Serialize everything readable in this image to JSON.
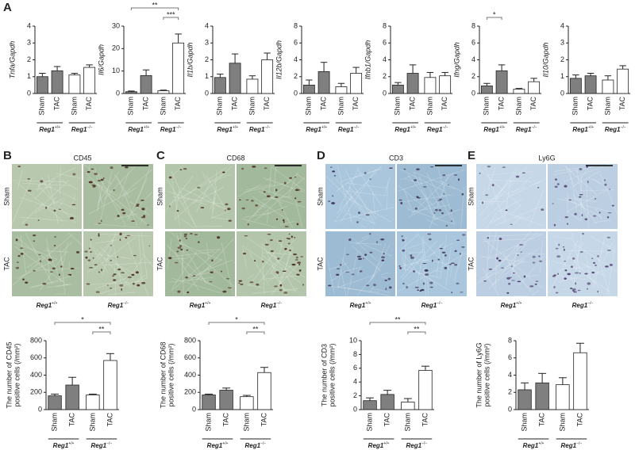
{
  "chart_data": [
    {
      "type": "bar",
      "ylabel": "Tnfa/Gapdh",
      "categories": [
        "Sham",
        "TAC",
        "Sham",
        "TAC"
      ],
      "groups": [
        {
          "name": "Reg1",
          "genotype": "+/+"
        },
        {
          "name": "Reg1",
          "genotype": "−/−"
        }
      ],
      "values": [
        1.0,
        1.35,
        1.1,
        1.55
      ],
      "errors": [
        0.2,
        0.25,
        0.1,
        0.15
      ],
      "colors": [
        "#7f7f7f",
        "#7f7f7f",
        "#ffffff",
        "#ffffff"
      ],
      "ylim": [
        0,
        4
      ],
      "yticks": [
        0,
        1,
        2,
        3,
        4
      ],
      "brackets": []
    },
    {
      "type": "bar",
      "ylabel": "Il6/Gapdh",
      "categories": [
        "Sham",
        "TAC",
        "Sham",
        "TAC"
      ],
      "groups": [
        {
          "name": "Reg1",
          "genotype": "+/+"
        },
        {
          "name": "Reg1",
          "genotype": "−/−"
        }
      ],
      "values": [
        0.8,
        8,
        1.2,
        22.5
      ],
      "errors": [
        0.3,
        2.5,
        0.3,
        4
      ],
      "colors": [
        "#7f7f7f",
        "#7f7f7f",
        "#ffffff",
        "#ffffff"
      ],
      "ylim": [
        0,
        30
      ],
      "yticks": [
        0,
        10,
        20,
        30
      ],
      "brackets": [
        {
          "from": 0,
          "to": 3,
          "label": "**"
        },
        {
          "from": 2,
          "to": 3,
          "label": "***"
        }
      ]
    },
    {
      "type": "bar",
      "ylabel": "Il1b/Gapdh",
      "categories": [
        "Sham",
        "TAC",
        "Sham",
        "TAC"
      ],
      "groups": [
        {
          "name": "Reg1",
          "genotype": "+/+"
        },
        {
          "name": "Reg1",
          "genotype": "−/−"
        }
      ],
      "values": [
        0.95,
        1.8,
        0.85,
        2.0
      ],
      "errors": [
        0.2,
        0.55,
        0.2,
        0.4
      ],
      "colors": [
        "#7f7f7f",
        "#7f7f7f",
        "#ffffff",
        "#ffffff"
      ],
      "ylim": [
        0,
        4
      ],
      "yticks": [
        0,
        1,
        2,
        3,
        4
      ],
      "brackets": []
    },
    {
      "type": "bar",
      "ylabel": "Il12b/Gapdh",
      "categories": [
        "Sham",
        "TAC",
        "Sham",
        "TAC"
      ],
      "groups": [
        {
          "name": "Reg1",
          "genotype": "+/+"
        },
        {
          "name": "Reg1",
          "genotype": "−/−"
        }
      ],
      "values": [
        1.0,
        2.6,
        0.8,
        2.4
      ],
      "errors": [
        0.6,
        1.1,
        0.4,
        0.7
      ],
      "colors": [
        "#7f7f7f",
        "#7f7f7f",
        "#ffffff",
        "#ffffff"
      ],
      "ylim": [
        0,
        8
      ],
      "yticks": [
        0,
        2,
        4,
        6,
        8
      ],
      "brackets": []
    },
    {
      "type": "bar",
      "ylabel": "Ifnb1/Gapdh",
      "categories": [
        "Sham",
        "TAC",
        "Sham",
        "TAC"
      ],
      "groups": [
        {
          "name": "Reg1",
          "genotype": "+/+"
        },
        {
          "name": "Reg1",
          "genotype": "−/−"
        }
      ],
      "values": [
        1.0,
        2.4,
        1.9,
        2.1
      ],
      "errors": [
        0.3,
        1.0,
        0.6,
        0.4
      ],
      "colors": [
        "#7f7f7f",
        "#7f7f7f",
        "#ffffff",
        "#ffffff"
      ],
      "ylim": [
        0,
        8
      ],
      "yticks": [
        0,
        2,
        4,
        6,
        8
      ],
      "brackets": []
    },
    {
      "type": "bar",
      "ylabel": "Ifng/Gapdh",
      "categories": [
        "Sham",
        "TAC",
        "Sham",
        "TAC"
      ],
      "groups": [
        {
          "name": "Reg1",
          "genotype": "+/+"
        },
        {
          "name": "Reg1",
          "genotype": "−/−"
        }
      ],
      "values": [
        0.9,
        2.7,
        0.5,
        1.4
      ],
      "errors": [
        0.3,
        0.7,
        0.1,
        0.4
      ],
      "colors": [
        "#7f7f7f",
        "#7f7f7f",
        "#ffffff",
        "#ffffff"
      ],
      "ylim": [
        0,
        8
      ],
      "yticks": [
        0,
        2,
        4,
        6,
        8
      ],
      "brackets": [
        {
          "from": 0,
          "to": 1,
          "label": "*"
        }
      ]
    },
    {
      "type": "bar",
      "ylabel": "Il10/Gapdh",
      "categories": [
        "Sham",
        "TAC",
        "Sham",
        "TAC"
      ],
      "groups": [
        {
          "name": "Reg1",
          "genotype": "+/+"
        },
        {
          "name": "Reg1",
          "genotype": "−/−"
        }
      ],
      "values": [
        0.9,
        1.05,
        0.8,
        1.45
      ],
      "errors": [
        0.2,
        0.15,
        0.25,
        0.2
      ],
      "colors": [
        "#7f7f7f",
        "#7f7f7f",
        "#ffffff",
        "#ffffff"
      ],
      "ylim": [
        0,
        4
      ],
      "yticks": [
        0,
        1,
        2,
        3,
        4
      ],
      "brackets": []
    },
    {
      "type": "bar",
      "ylabel": [
        "The number of CD45",
        "positive cells (/mm²)"
      ],
      "categories": [
        "Sham",
        "TAC",
        "Sham",
        "TAC"
      ],
      "groups": [
        {
          "name": "Reg1",
          "genotype": "+/+"
        },
        {
          "name": "Reg1",
          "genotype": "−/−"
        }
      ],
      "values": [
        160,
        285,
        170,
        570
      ],
      "errors": [
        20,
        90,
        10,
        80
      ],
      "colors": [
        "#7f7f7f",
        "#7f7f7f",
        "#ffffff",
        "#ffffff"
      ],
      "ylim": [
        0,
        800
      ],
      "yticks": [
        0,
        200,
        400,
        600,
        800
      ],
      "brackets": [
        {
          "from": 0,
          "to": 3,
          "label": "*"
        },
        {
          "from": 2,
          "to": 3,
          "label": "**"
        }
      ]
    },
    {
      "type": "bar",
      "ylabel": [
        "The number of CD68",
        "positive cells (/mm²)"
      ],
      "categories": [
        "Sham",
        "TAC",
        "Sham",
        "TAC"
      ],
      "groups": [
        {
          "name": "Reg1",
          "genotype": "+/+"
        },
        {
          "name": "Reg1",
          "genotype": "−/−"
        }
      ],
      "values": [
        170,
        225,
        150,
        430
      ],
      "errors": [
        10,
        25,
        15,
        60
      ],
      "colors": [
        "#7f7f7f",
        "#7f7f7f",
        "#ffffff",
        "#ffffff"
      ],
      "ylim": [
        0,
        800
      ],
      "yticks": [
        0,
        200,
        400,
        600,
        800
      ],
      "brackets": [
        {
          "from": 0,
          "to": 3,
          "label": "*"
        },
        {
          "from": 2,
          "to": 3,
          "label": "**"
        }
      ]
    },
    {
      "type": "bar",
      "ylabel": [
        "The number of CD3",
        "positive cells (/mm²)"
      ],
      "categories": [
        "Sham",
        "TAC",
        "Sham",
        "TAC"
      ],
      "groups": [
        {
          "name": "Reg1",
          "genotype": "+/+"
        },
        {
          "name": "Reg1",
          "genotype": "−/−"
        }
      ],
      "values": [
        1.3,
        2.2,
        1.1,
        5.7
      ],
      "errors": [
        0.4,
        0.6,
        0.5,
        0.6
      ],
      "colors": [
        "#7f7f7f",
        "#7f7f7f",
        "#ffffff",
        "#ffffff"
      ],
      "ylim": [
        0,
        10
      ],
      "yticks": [
        0,
        2,
        4,
        6,
        8,
        10
      ],
      "brackets": [
        {
          "from": 0,
          "to": 3,
          "label": "**"
        },
        {
          "from": 2,
          "to": 3,
          "label": "**"
        }
      ]
    },
    {
      "type": "bar",
      "ylabel": [
        "The number of Ly6G",
        "positive cells (/mm²)"
      ],
      "categories": [
        "Sham",
        "TAC",
        "Sham",
        "TAC"
      ],
      "groups": [
        {
          "name": "Reg1",
          "genotype": "+/+"
        },
        {
          "name": "Reg1",
          "genotype": "−/−"
        }
      ],
      "values": [
        2.3,
        3.1,
        2.9,
        6.6
      ],
      "errors": [
        0.8,
        1.1,
        0.8,
        1.1
      ],
      "colors": [
        "#7f7f7f",
        "#7f7f7f",
        "#ffffff",
        "#ffffff"
      ],
      "ylim": [
        0,
        8
      ],
      "yticks": [
        0,
        2,
        4,
        6,
        8
      ],
      "brackets": []
    }
  ],
  "panels": [
    {
      "letter": "A"
    },
    {
      "letter": "B",
      "stain": "CD45",
      "rows": [
        "Sham",
        "TAC"
      ],
      "columns": [
        {
          "name": "Reg1",
          "genotype": "+/+"
        },
        {
          "name": "Reg1",
          "genotype": "−/−"
        }
      ]
    },
    {
      "letter": "C",
      "stain": "CD68",
      "rows": [
        "Sham",
        "TAC"
      ],
      "columns": [
        {
          "name": "Reg1",
          "genotype": "+/+"
        },
        {
          "name": "Reg1",
          "genotype": "−/−"
        }
      ]
    },
    {
      "letter": "D",
      "stain": "CD3",
      "rows": [
        "Sham",
        "TAC"
      ],
      "columns": [
        {
          "name": "Reg1",
          "genotype": "+/+"
        },
        {
          "name": "Reg1",
          "genotype": "−/−"
        }
      ]
    },
    {
      "letter": "E",
      "stain": "Ly6G",
      "rows": [
        "Sham",
        "TAC"
      ],
      "columns": [
        {
          "name": "Reg1",
          "genotype": "+/+"
        },
        {
          "name": "Reg1",
          "genotype": "−/−"
        }
      ]
    }
  ]
}
